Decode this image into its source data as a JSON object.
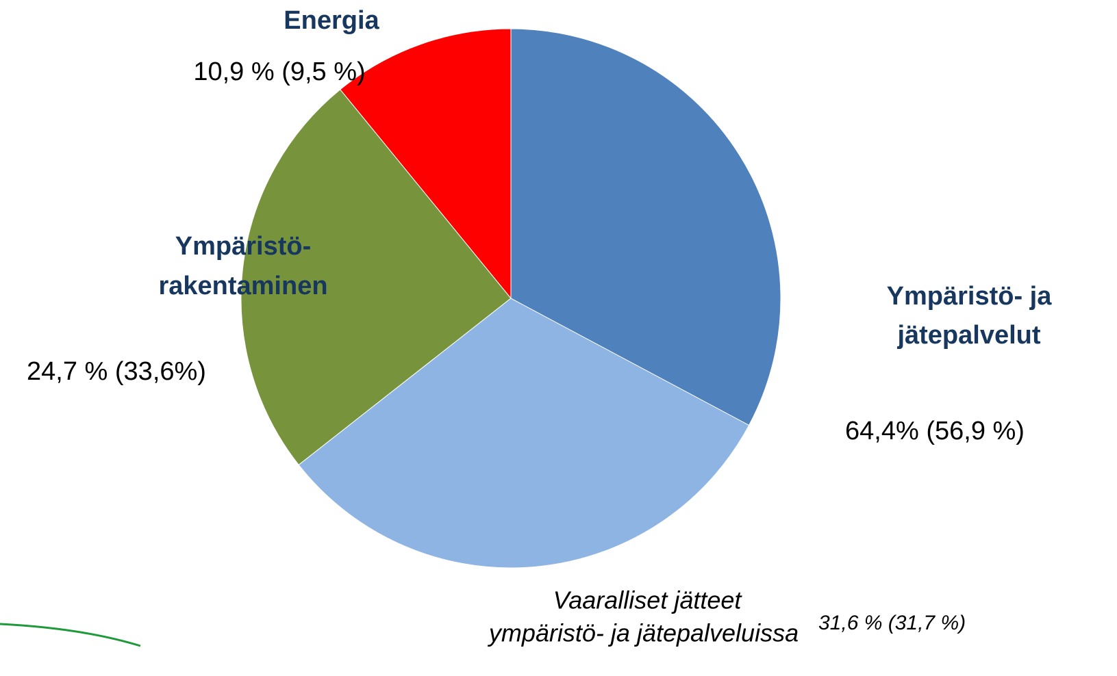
{
  "chart_data": {
    "type": "pie",
    "categories": [
      [
        "Ympäristö- ja",
        "jätepalvelut"
      ],
      [
        "Ympäristö-",
        "rakentaminen"
      ],
      [
        "Energia"
      ]
    ],
    "values": [
      64.4,
      24.7,
      10.9
    ],
    "value_labels": [
      "64,4% (56,9 %)",
      "24,7 % (33,6%)",
      "10,9 % (9,5 %)"
    ],
    "colors": [
      "#4f81bd",
      "#77933c",
      "#ff0000"
    ],
    "subslice": {
      "of": 0,
      "name": [
        "Vaaralliset jätteet",
        "ympäristö- ja jätepalveluissa"
      ],
      "value": 31.6,
      "value_label": "31,6 % (31,7 %)",
      "color": "#8eb4e3"
    }
  }
}
